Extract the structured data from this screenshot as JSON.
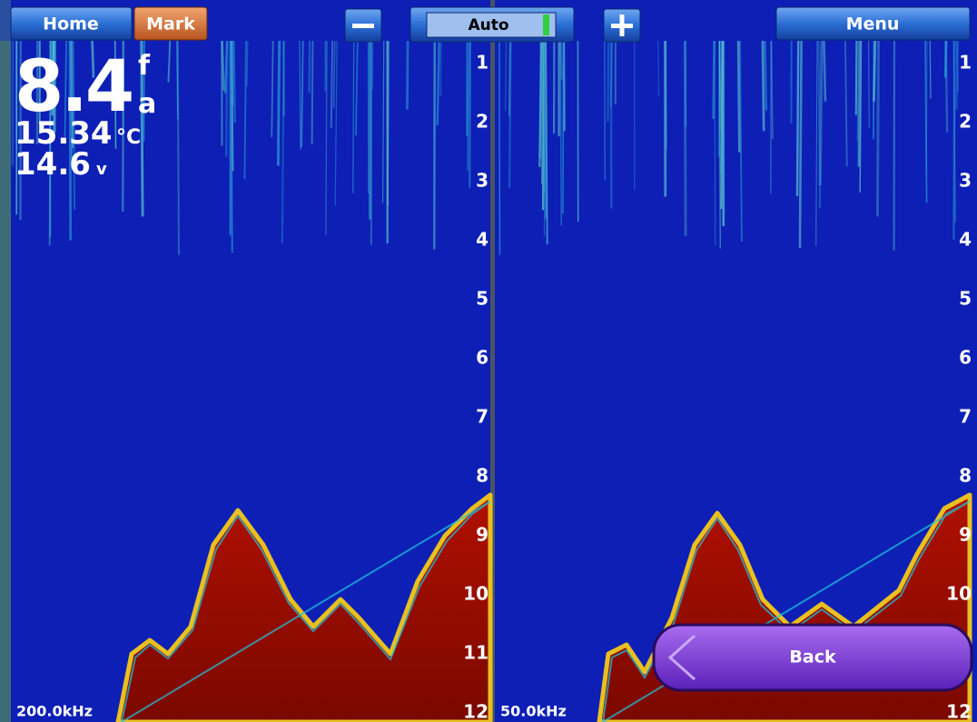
{
  "toolbar": {
    "home": "Home",
    "mark": "Mark",
    "mode": "Auto",
    "menu": "Menu"
  },
  "readouts": {
    "depth": {
      "value": "8.4",
      "unit_top": "f",
      "unit_bottom": "a"
    },
    "temperature": {
      "value": "15.34",
      "unit": "°C"
    },
    "voltage": {
      "value": "14.6",
      "unit": "v"
    }
  },
  "panes": [
    {
      "frequency": "200.0kHz",
      "depth_labels": [
        1,
        2,
        3,
        4,
        5,
        6,
        7,
        8,
        9,
        10,
        11,
        12
      ]
    },
    {
      "frequency": "50.0kHz",
      "depth_labels": [
        1,
        2,
        3,
        4,
        5,
        6,
        7,
        8,
        9,
        10,
        11,
        12
      ]
    }
  ],
  "back_button": "Back"
}
